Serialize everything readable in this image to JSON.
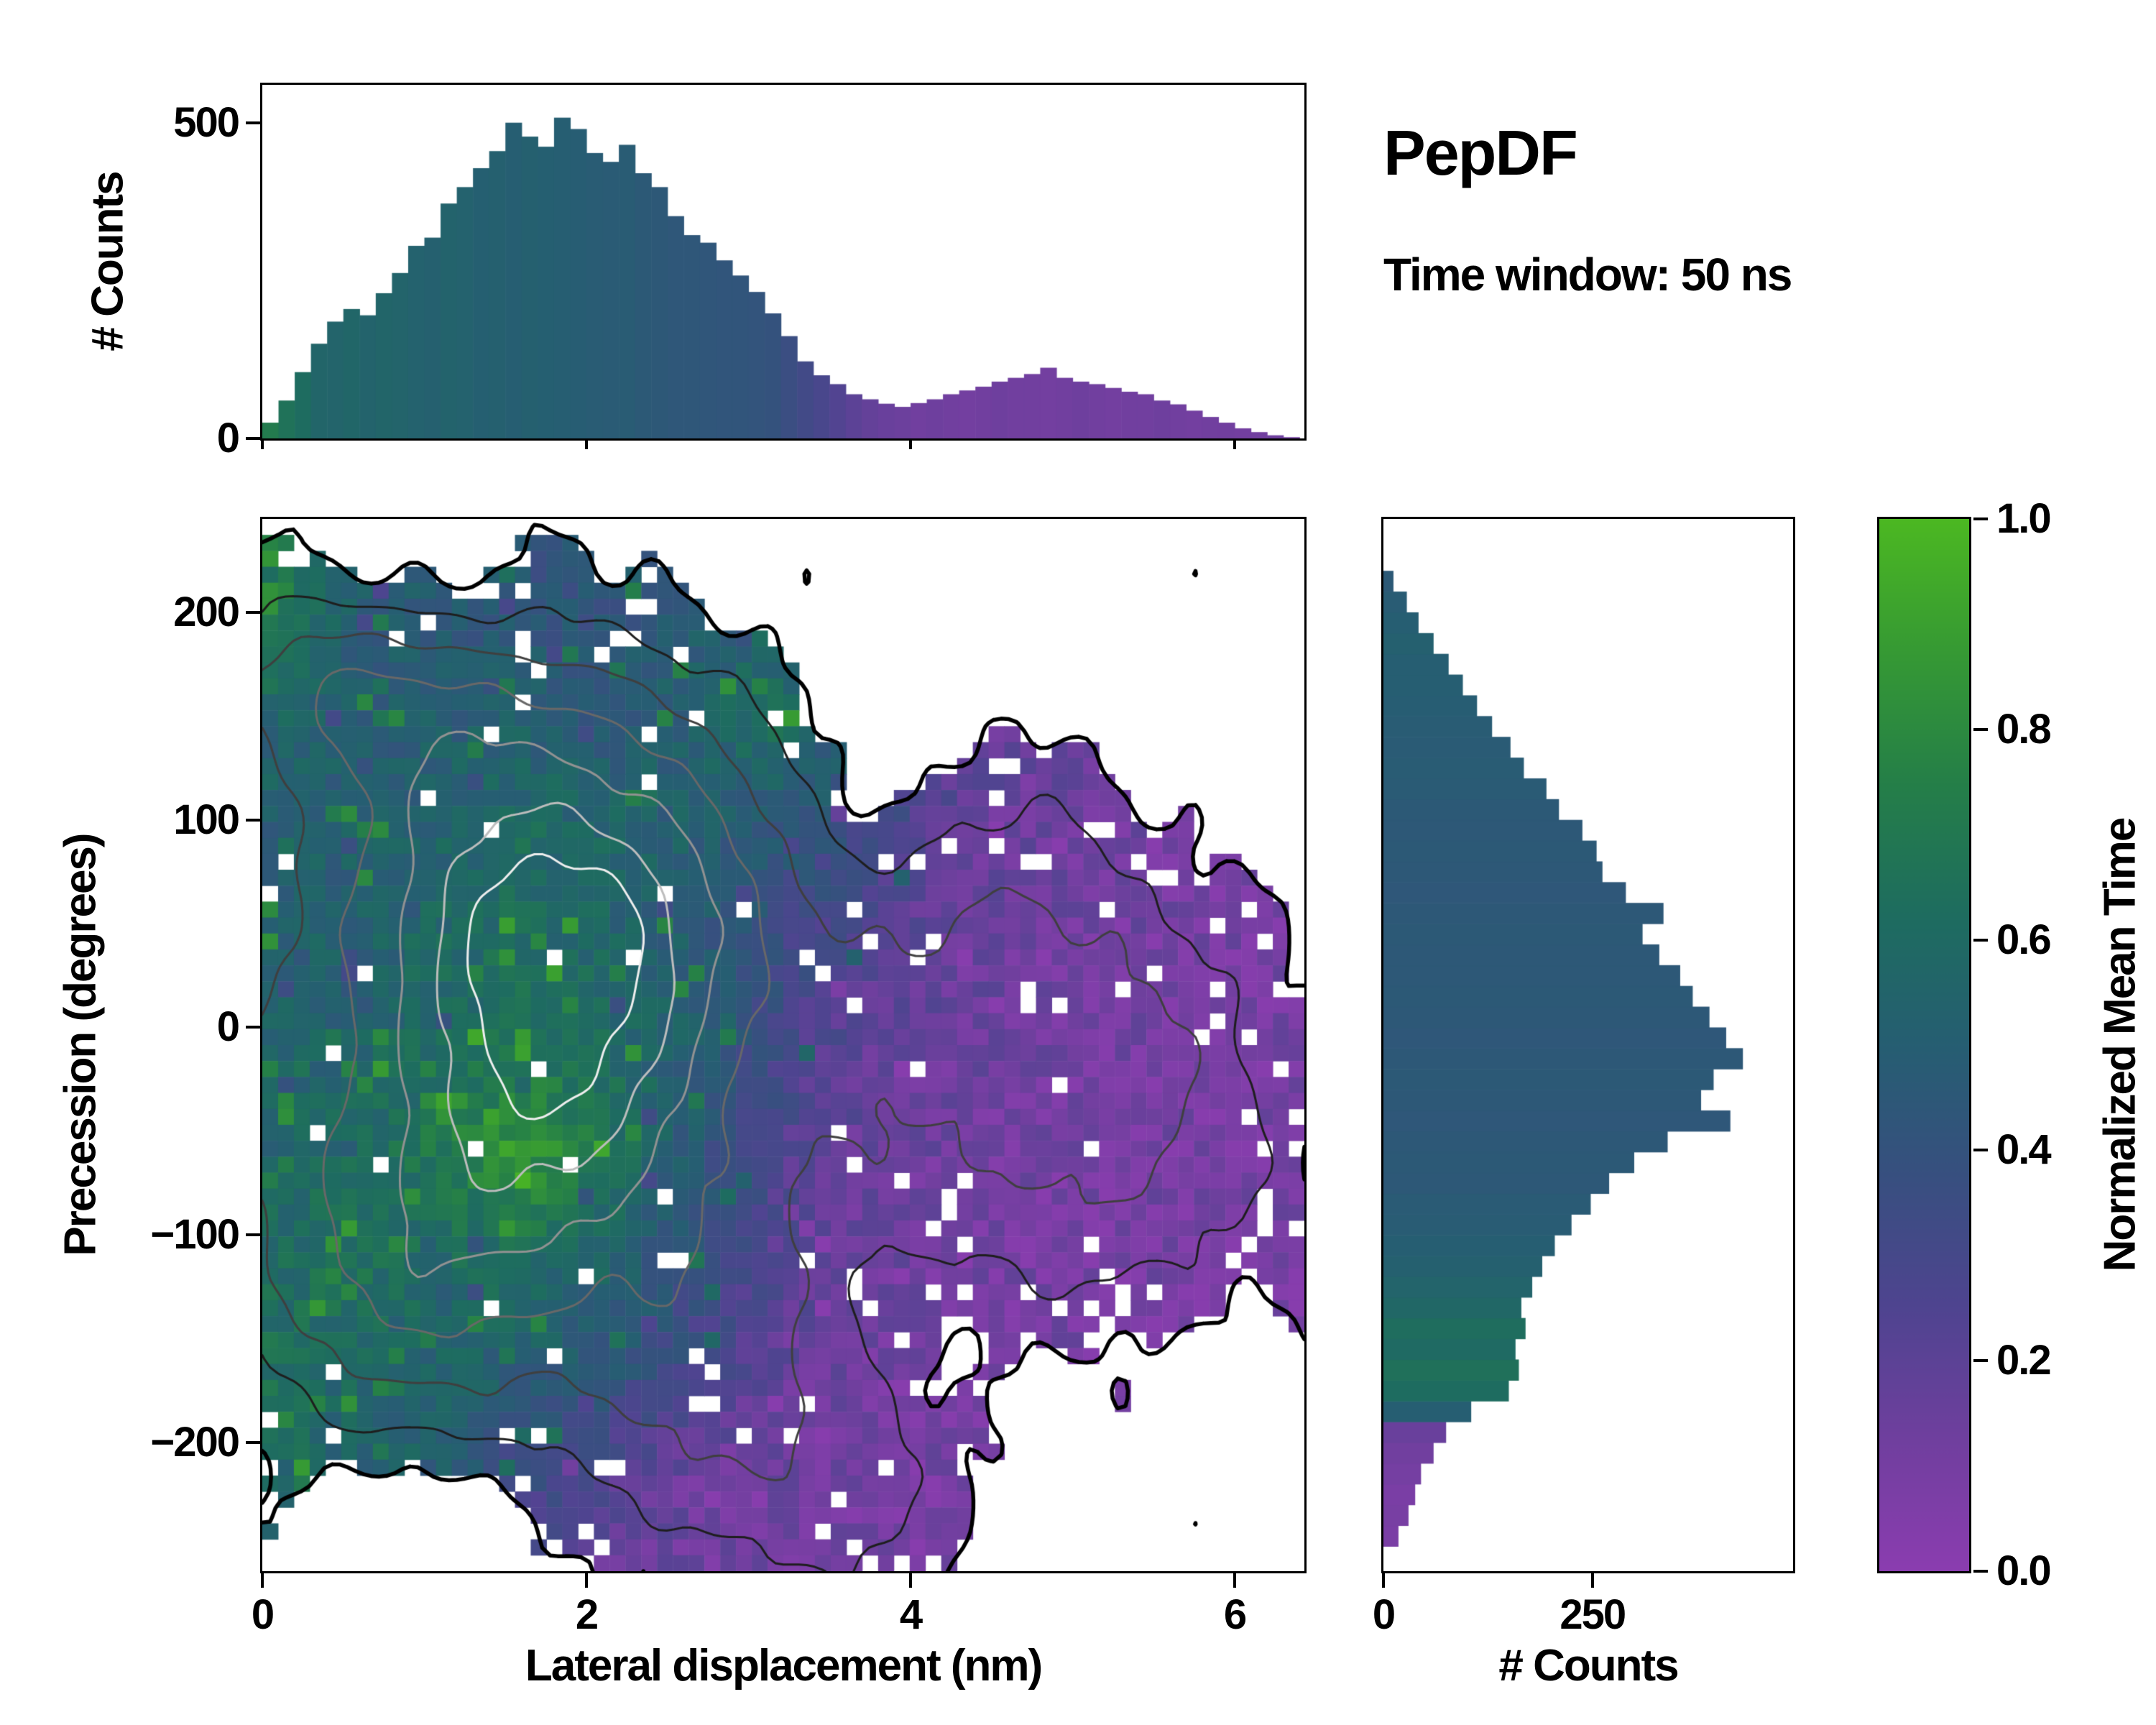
{
  "header": {
    "title": "PepDF",
    "subtitle": "Time window: 50 ns"
  },
  "colormap": {
    "label": "Normalized Mean Time",
    "ticks": [
      "0.0",
      "0.2",
      "0.4",
      "0.6",
      "0.8",
      "1.0"
    ],
    "tick_values": [
      0,
      0.2,
      0.4,
      0.6,
      0.8,
      1.0
    ],
    "stops": [
      [
        0.0,
        "#8b3db0"
      ],
      [
        0.12,
        "#713f9f"
      ],
      [
        0.25,
        "#4f4490"
      ],
      [
        0.38,
        "#37507f"
      ],
      [
        0.5,
        "#265e72"
      ],
      [
        0.62,
        "#1e6c60"
      ],
      [
        0.75,
        "#257f48"
      ],
      [
        0.88,
        "#379b33"
      ],
      [
        1.0,
        "#4cb822"
      ]
    ]
  },
  "chart_data": [
    {
      "id": "top_marginal_histogram",
      "type": "bar",
      "ylabel": "# Counts",
      "xlim": [
        0,
        6.43
      ],
      "ylim": [
        0,
        560
      ],
      "ytick_values": [
        0,
        500
      ],
      "ytick_labels": [
        "0",
        "500"
      ],
      "bin_start": 0,
      "bin_width": 0.1,
      "values": [
        25,
        60,
        105,
        150,
        185,
        205,
        195,
        230,
        262,
        305,
        318,
        372,
        398,
        428,
        455,
        500,
        478,
        462,
        508,
        490,
        452,
        438,
        465,
        420,
        398,
        352,
        322,
        310,
        282,
        258,
        232,
        198,
        162,
        122,
        100,
        86,
        70,
        62,
        55,
        50,
        56,
        62,
        70,
        76,
        82,
        90,
        96,
        102,
        112,
        96,
        90,
        86,
        80,
        74,
        70,
        60,
        54,
        44,
        34,
        25,
        16,
        10,
        5,
        2
      ],
      "mean_time": [
        0.72,
        0.66,
        0.62,
        0.56,
        0.55,
        0.57,
        0.54,
        0.56,
        0.55,
        0.53,
        0.52,
        0.54,
        0.53,
        0.51,
        0.52,
        0.5,
        0.52,
        0.51,
        0.5,
        0.49,
        0.48,
        0.47,
        0.48,
        0.46,
        0.45,
        0.44,
        0.44,
        0.43,
        0.42,
        0.42,
        0.41,
        0.4,
        0.36,
        0.32,
        0.28,
        0.24,
        0.2,
        0.17,
        0.15,
        0.14,
        0.12,
        0.13,
        0.12,
        0.11,
        0.12,
        0.13,
        0.12,
        0.12,
        0.11,
        0.12,
        0.13,
        0.12,
        0.11,
        0.12,
        0.12,
        0.13,
        0.12,
        0.11,
        0.12,
        0.12,
        0.11,
        0.12,
        0.13,
        0.12
      ]
    },
    {
      "id": "joint_heatmap",
      "type": "heatmap",
      "xlabel": "Lateral displacement (nm)",
      "ylabel": "Precession (degrees)",
      "colorbar_label": "Normalized Mean Time",
      "xlim": [
        0,
        6.43
      ],
      "ylim": [
        -262,
        245
      ],
      "xtick_values": [
        0,
        2,
        4,
        6
      ],
      "xtick_labels": [
        "0",
        "2",
        "4",
        "6"
      ],
      "ytick_values": [
        200,
        100,
        0,
        -100,
        -200
      ],
      "ytick_labels": [
        "200",
        "100",
        "0",
        "−100",
        "−200"
      ],
      "grid_cells": {
        "nx": 66,
        "ny": 66
      },
      "mean_time_grid": {
        "cols": 13,
        "rows": 11,
        "values": [
          [
            0.85,
            0.55,
            0.45,
            0.42,
            0.45,
            0.48,
            0.45,
            0.3,
            0.2,
            0.15,
            0.12,
            0.12,
            0.12
          ],
          [
            0.8,
            0.5,
            0.45,
            0.44,
            0.42,
            0.5,
            0.55,
            0.4,
            0.25,
            0.15,
            0.12,
            0.12,
            0.12
          ],
          [
            0.55,
            0.48,
            0.5,
            0.52,
            0.48,
            0.52,
            0.65,
            0.5,
            0.2,
            0.15,
            0.12,
            0.1,
            0.1
          ],
          [
            0.5,
            0.52,
            0.55,
            0.6,
            0.55,
            0.5,
            0.45,
            0.3,
            0.18,
            0.14,
            0.12,
            0.1,
            0.1
          ],
          [
            0.55,
            0.5,
            0.58,
            0.62,
            0.55,
            0.48,
            0.35,
            0.22,
            0.15,
            0.12,
            0.12,
            0.1,
            0.1
          ],
          [
            0.5,
            0.55,
            0.6,
            0.68,
            0.6,
            0.5,
            0.3,
            0.18,
            0.14,
            0.12,
            0.1,
            0.1,
            0.1
          ],
          [
            0.55,
            0.6,
            0.7,
            0.88,
            0.65,
            0.45,
            0.25,
            0.15,
            0.12,
            0.1,
            0.1,
            0.1,
            0.1
          ],
          [
            0.6,
            0.65,
            0.6,
            0.62,
            0.55,
            0.4,
            0.22,
            0.14,
            0.12,
            0.1,
            0.1,
            0.1,
            0.1
          ],
          [
            0.65,
            0.6,
            0.55,
            0.5,
            0.45,
            0.3,
            0.18,
            0.12,
            0.1,
            0.1,
            0.1,
            0.1,
            0.1
          ],
          [
            0.6,
            0.55,
            0.5,
            0.4,
            0.25,
            0.15,
            0.12,
            0.1,
            0.1,
            0.1,
            0.1,
            0.1,
            0.1
          ],
          [
            0.5,
            0.45,
            0.35,
            0.2,
            0.15,
            0.12,
            0.1,
            0.1,
            0.1,
            0.1,
            0.1,
            0.1,
            0.1
          ]
        ]
      },
      "density_blobs": [
        [
          1.6,
          70,
          1.0,
          0.85,
          60
        ],
        [
          1.5,
          -40,
          0.95,
          0.8,
          70
        ],
        [
          2.3,
          30,
          0.7,
          0.8,
          90
        ],
        [
          0.8,
          -120,
          0.55,
          0.7,
          55
        ],
        [
          1.0,
          145,
          0.45,
          0.8,
          30
        ],
        [
          2.7,
          -160,
          0.45,
          0.8,
          60
        ],
        [
          4.3,
          -20,
          0.35,
          1.1,
          90
        ],
        [
          5.3,
          -55,
          0.4,
          0.75,
          62
        ],
        [
          4.7,
          40,
          0.28,
          0.7,
          50
        ],
        [
          3.4,
          -220,
          0.3,
          0.7,
          45
        ],
        [
          0.45,
          170,
          0.4,
          0.5,
          28
        ],
        [
          -0.1,
          0,
          0.25,
          0.6,
          120
        ],
        [
          4.4,
          -150,
          -0.16,
          0.6,
          40
        ],
        [
          3.7,
          115,
          -0.12,
          0.45,
          40
        ],
        [
          1.2,
          -240,
          -0.08,
          0.8,
          40
        ]
      ],
      "outline_level": 0.12,
      "contour_levels": [
        0.3,
        0.55,
        0.85,
        1.15,
        1.42,
        1.65
      ],
      "contour_colors": [
        "#1e1e1e",
        "#3f3f3f",
        "#686868",
        "#929292",
        "#bdbdbd",
        "#eeeeee"
      ]
    },
    {
      "id": "right_marginal_histogram",
      "type": "bar",
      "orientation": "horizontal",
      "xlabel": "# Counts",
      "xlim": [
        0,
        490
      ],
      "ylim": [
        -262,
        245
      ],
      "xtick_values": [
        0,
        250
      ],
      "xtick_labels": [
        "0",
        "250"
      ],
      "bin_start": -260,
      "bin_width": 10,
      "values": [
        0,
        18,
        30,
        38,
        45,
        60,
        75,
        105,
        150,
        162,
        158,
        170,
        165,
        178,
        190,
        205,
        225,
        248,
        270,
        300,
        340,
        415,
        380,
        395,
        430,
        410,
        390,
        370,
        355,
        330,
        310,
        335,
        290,
        262,
        255,
        238,
        210,
        195,
        168,
        152,
        130,
        112,
        95,
        78,
        60,
        42,
        28,
        12
      ],
      "mean_time": [
        0.1,
        0.08,
        0.09,
        0.08,
        0.1,
        0.12,
        0.15,
        0.5,
        0.62,
        0.65,
        0.6,
        0.63,
        0.58,
        0.55,
        0.52,
        0.5,
        0.48,
        0.47,
        0.45,
        0.46,
        0.45,
        0.44,
        0.45,
        0.46,
        0.45,
        0.44,
        0.45,
        0.46,
        0.45,
        0.45,
        0.46,
        0.45,
        0.44,
        0.45,
        0.46,
        0.45,
        0.46,
        0.47,
        0.48,
        0.47,
        0.48,
        0.49,
        0.5,
        0.5,
        0.52,
        0.5,
        0.48,
        0.46
      ]
    }
  ]
}
